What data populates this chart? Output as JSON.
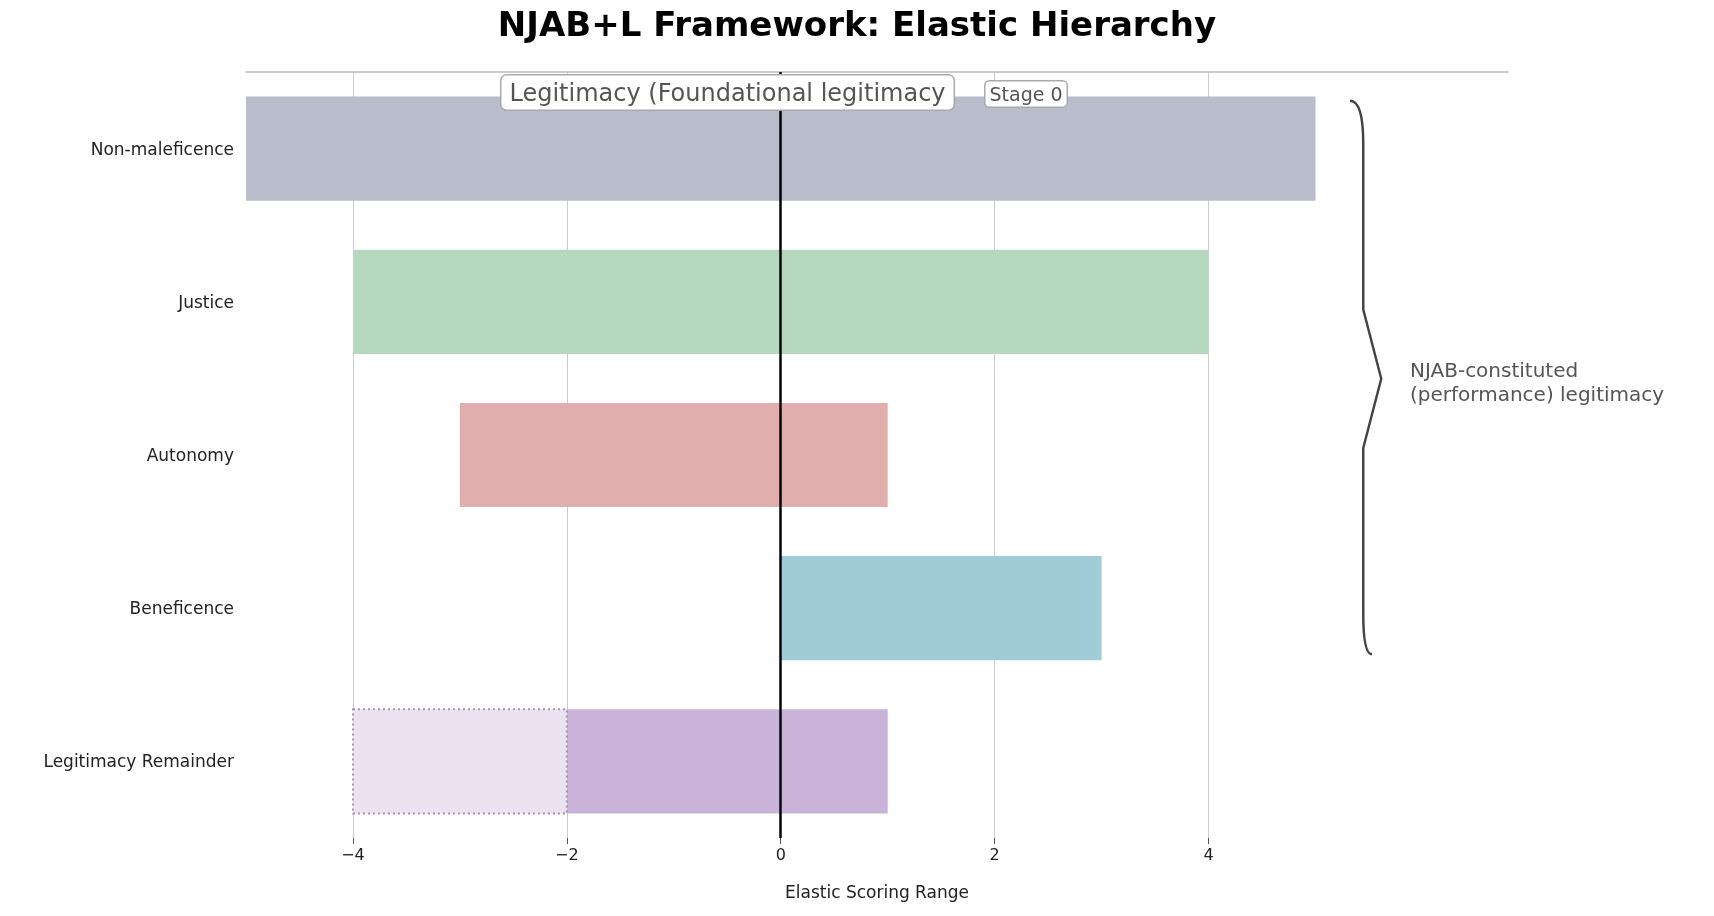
{
  "chart_data": {
    "type": "bar",
    "orientation": "horizontal",
    "title": "NJAB+L Framework: Elastic Hierarchy",
    "xlabel": "Elastic Scoring Range",
    "categories": [
      "Non-maleficence",
      "Justice",
      "Autonomy",
      "Beneficence",
      "Legitimacy Remainder"
    ],
    "series": [
      {
        "values": [
          10,
          8,
          4,
          3,
          3
        ],
        "base": [
          -5,
          -4,
          -3,
          0,
          -2
        ],
        "colors": [
          "#b8bccb",
          "#b5d8bf",
          "#e0aeac",
          "#a0ccd8",
          "#c9b3d8"
        ]
      },
      {
        "values": [
          null,
          null,
          null,
          null,
          2
        ],
        "base": [
          null,
          null,
          null,
          null,
          -4
        ],
        "color": "#ebe4f0",
        "line_style": "dotted"
      }
    ],
    "xlim": [
      -5,
      6.8
    ],
    "xticks": [
      {
        "value": -4,
        "label": "−4"
      },
      {
        "value": -2,
        "label": "−2"
      },
      0,
      2,
      4
    ],
    "grid": "x",
    "ref_lines": [
      {
        "axis": "x",
        "value": 0,
        "color": "#000000"
      }
    ],
    "annotations": [
      "Legitimacy (Foundational legitimacy",
      "Stage 0",
      "NJAB-constituted\n(performance) legitimacy"
    ]
  }
}
